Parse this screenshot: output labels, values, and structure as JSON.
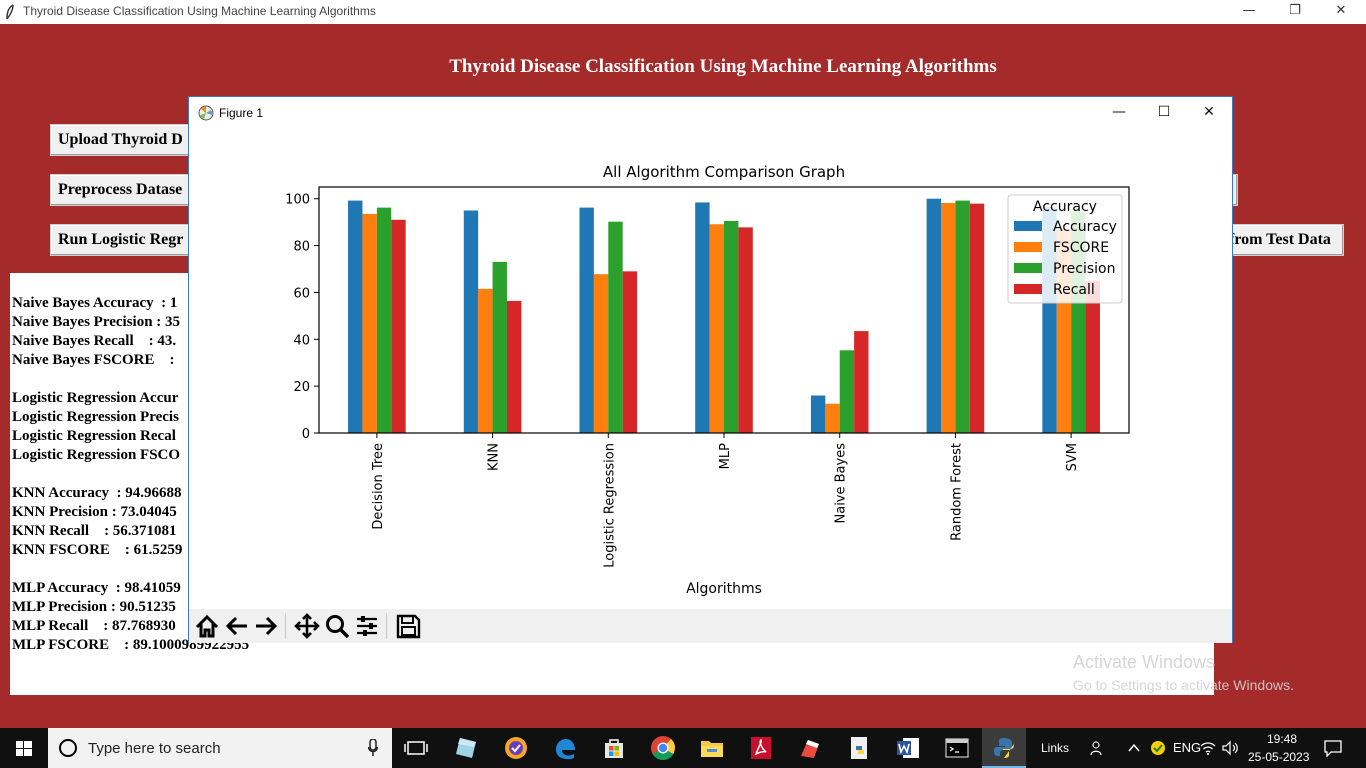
{
  "window": {
    "title": "Thyroid Disease Classification Using Machine Learning Algorithms"
  },
  "app": {
    "heading": "Thyroid Disease Classification Using Machine Learning Algorithms",
    "buttons": {
      "upload": "Upload Thyroid D",
      "preprocess": "Preprocess Datase",
      "logistic": "Run Logistic Regr",
      "predict_partial": "from Test Data"
    },
    "output_lines": [
      "Naive Bayes Accuracy  : 1",
      "Naive Bayes Precision : 35",
      "Naive Bayes Recall    : 43.",
      "Naive Bayes FSCORE    :",
      "Logistic Regression Accur",
      "Logistic Regression Precis",
      "Logistic Regression Recal",
      "Logistic Regression FSCO",
      "KNN Accuracy  : 94.96688",
      "KNN Precision : 73.04045",
      "KNN Recall    : 56.371081",
      "KNN FSCORE    : 61.5259",
      "MLP Accuracy  : 98.41059",
      "MLP Precision : 90.51235",
      "MLP Recall    : 87.768930",
      "MLP FSCORE    : 89.1000989922955"
    ]
  },
  "figure": {
    "title": "Figure 1",
    "toolbar_icons": [
      "home-icon",
      "back-icon",
      "forward-icon",
      "pan-icon",
      "zoom-icon",
      "configure-icon",
      "save-icon"
    ]
  },
  "chart_data": {
    "type": "bar",
    "title": "All Algorithm Comparison Graph",
    "xlabel": "Algorithms",
    "ylabel": "",
    "ylim": [
      0,
      105
    ],
    "yticks": [
      0,
      20,
      40,
      60,
      80,
      100
    ],
    "categories": [
      "Decision Tree",
      "KNN",
      "Logistic Regression",
      "MLP",
      "Naive Bayes",
      "Random Forest",
      "SVM"
    ],
    "legend": {
      "title": "Accuracy",
      "placement": "top-right"
    },
    "series": [
      {
        "name": "Accuracy",
        "color": "#1f77b4",
        "values": [
          99.2,
          94.97,
          96.2,
          98.41,
          16.0,
          100.0,
          96.5
        ]
      },
      {
        "name": "FSCORE",
        "color": "#ff7f0e",
        "values": [
          93.5,
          61.53,
          67.8,
          89.1,
          12.5,
          98.2,
          87.0
        ]
      },
      {
        "name": "Precision",
        "color": "#2ca02c",
        "values": [
          96.2,
          73.04,
          90.2,
          90.51,
          35.3,
          99.2,
          94.5
        ]
      },
      {
        "name": "Recall",
        "color": "#d62728",
        "values": [
          91.0,
          56.37,
          69.0,
          87.77,
          43.5,
          97.9,
          65.0
        ]
      }
    ]
  },
  "activation": {
    "line1": "Activate Windows",
    "line2": "Go to Settings to activate Windows."
  },
  "taskbar": {
    "search_placeholder": "Type here to search",
    "links": "Links",
    "ime": "ENG",
    "time": "19:48",
    "date": "25-05-2023"
  }
}
